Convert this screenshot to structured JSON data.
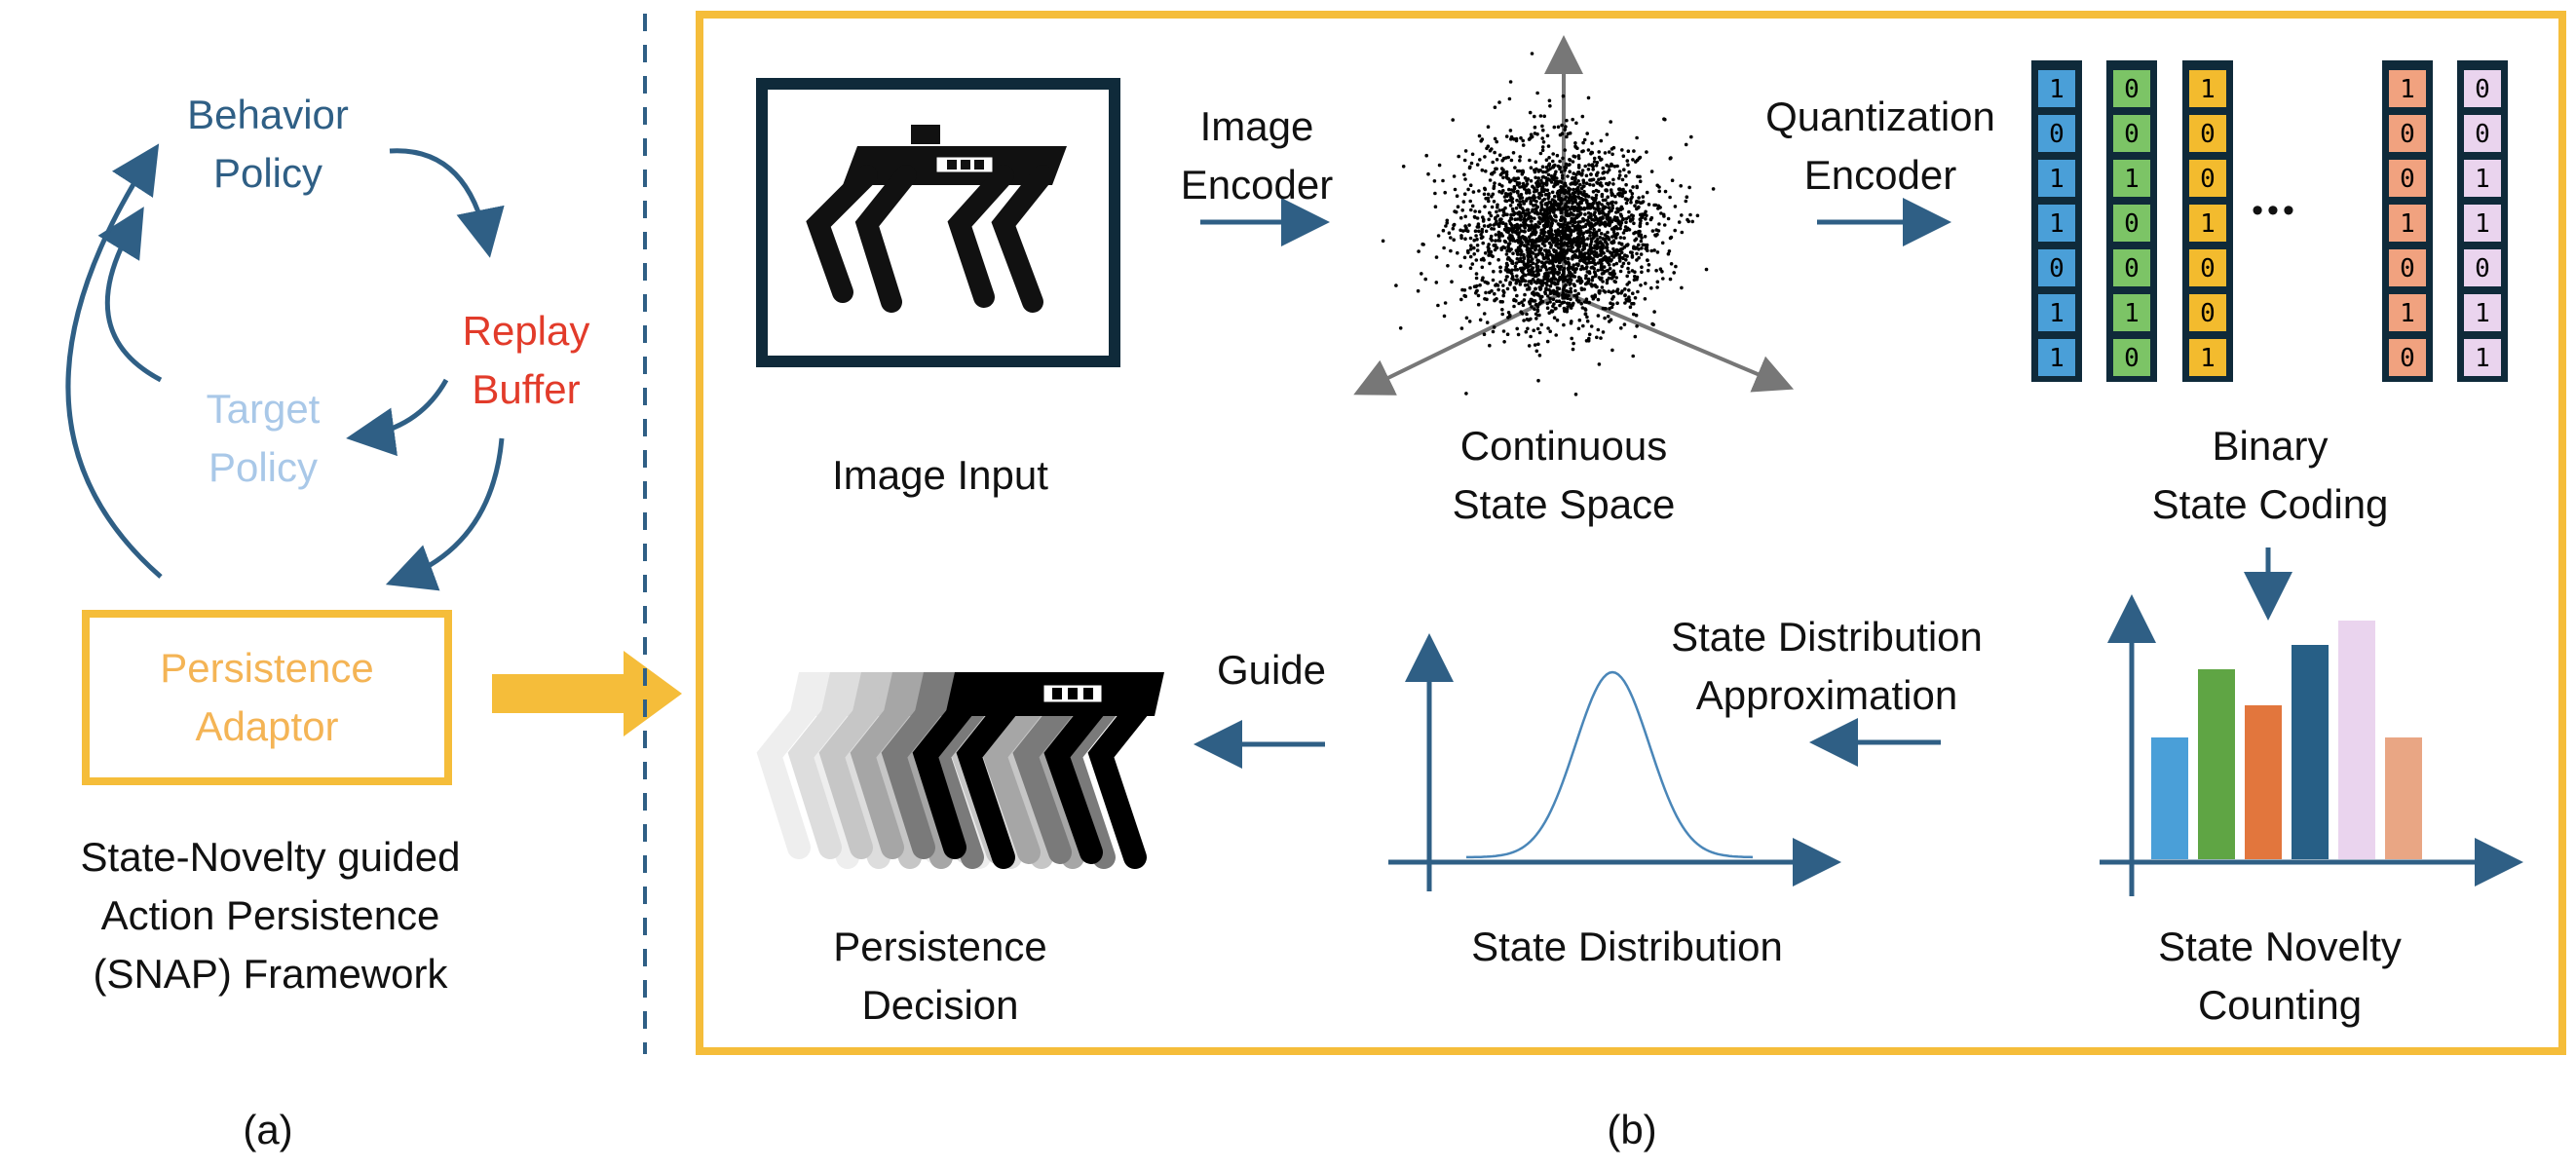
{
  "panel_a": {
    "cycle": {
      "behavior_policy": "Behavior\nPolicy",
      "replay_buffer": "Replay\nBuffer",
      "target_policy": "Target\nPolicy"
    },
    "persistence_adaptor": "Persistence\nAdaptor",
    "framework_caption": "State-Novelty guided\nAction Persistence\n(SNAP) Framework",
    "panel_label": "(a)"
  },
  "panel_b": {
    "image_input": "Image Input",
    "image_encoder": "Image\nEncoder",
    "continuous_state_space": "Continuous\nState Space",
    "quantization_encoder": "Quantization\nEncoder",
    "binary_state_coding": "Binary\nState Coding",
    "state_novelty_counting": "State Novelty\nCounting",
    "state_distribution_approximation": "State Distribution\nApproximation",
    "state_distribution": "State Distribution",
    "guide": "Guide",
    "persistence_decision": "Persistence\nDecision",
    "ellipsis": "•••",
    "panel_label": "(b)",
    "binary_columns": [
      {
        "color": "#4a9fd8",
        "bits": [
          "1",
          "0",
          "1",
          "1",
          "0",
          "1",
          "1"
        ]
      },
      {
        "color": "#7cc466",
        "bits": [
          "0",
          "0",
          "1",
          "0",
          "0",
          "1",
          "0"
        ]
      },
      {
        "color": "#f3bb2e",
        "bits": [
          "1",
          "0",
          "0",
          "1",
          "0",
          "0",
          "1"
        ]
      },
      {
        "color": "#f1a27f",
        "bits": [
          "1",
          "0",
          "0",
          "1",
          "0",
          "1",
          "0"
        ]
      },
      {
        "color": "#ead4ee",
        "bits": [
          "0",
          "0",
          "1",
          "1",
          "0",
          "1",
          "1"
        ]
      }
    ],
    "histogram_bar_colors": [
      "#4a9fd8",
      "#5fa544",
      "#e2763d",
      "#275f86",
      "#ead4ee",
      "#e9a684"
    ]
  },
  "colors": {
    "dark_blue": "#2f5f85",
    "red": "#e23b2a",
    "light_blue": "#a9c8e8",
    "yellow": "#f5bd3a",
    "light_orange": "#f4b455"
  }
}
